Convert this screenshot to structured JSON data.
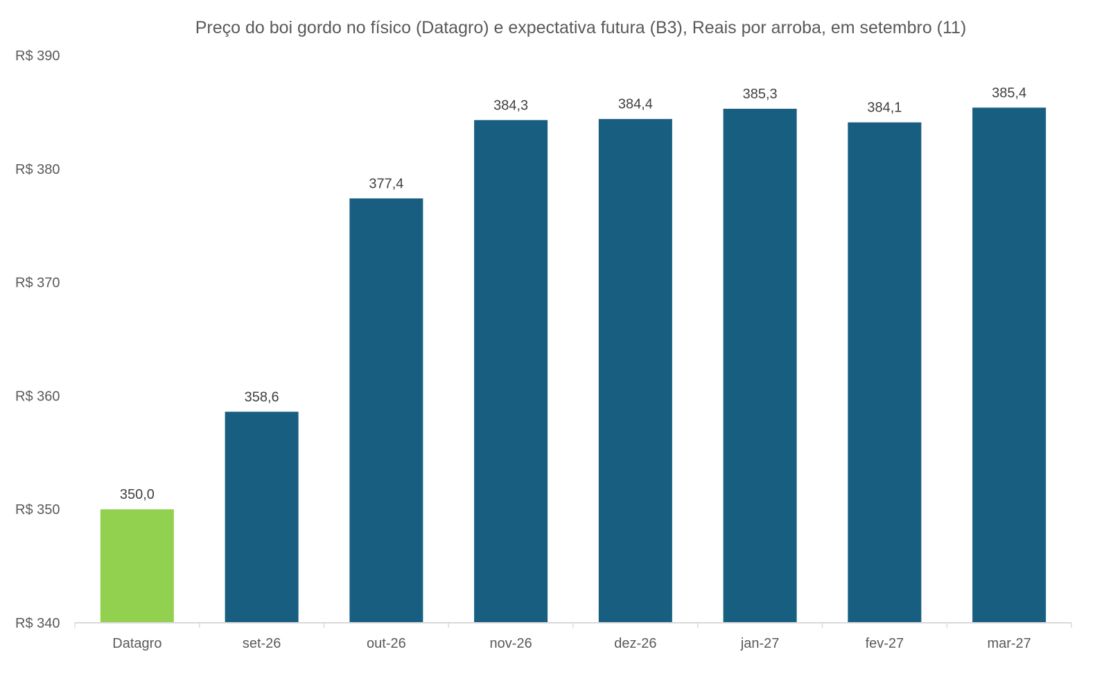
{
  "chart_data": {
    "type": "bar",
    "title": "Preço do boi gordo no físico (Datagro)  e expectativa futura (B3), Reais por arroba, em setembro (11)",
    "xlabel": "",
    "ylabel": "",
    "categories": [
      "Datagro",
      "set-26",
      "out-26",
      "nov-26",
      "dez-26",
      "jan-27",
      "fev-27",
      "mar-27"
    ],
    "values": [
      350.0,
      358.6,
      377.4,
      384.3,
      384.4,
      385.3,
      384.1,
      385.4
    ],
    "data_labels": [
      "350,0",
      "358,6",
      "377,4",
      "384,3",
      "384,4",
      "385,3",
      "384,1",
      "385,4"
    ],
    "bar_colors": [
      "#92D050",
      "#175E80",
      "#175E80",
      "#175E80",
      "#175E80",
      "#175E80",
      "#175E80",
      "#175E80"
    ],
    "ylim": [
      340,
      390
    ],
    "yticks": [
      340,
      350,
      360,
      370,
      380,
      390
    ],
    "ytick_labels": [
      "R$ 340",
      "R$ 350",
      "R$ 360",
      "R$ 370",
      "R$ 380",
      "R$ 390"
    ],
    "grid": false,
    "legend": "none"
  }
}
